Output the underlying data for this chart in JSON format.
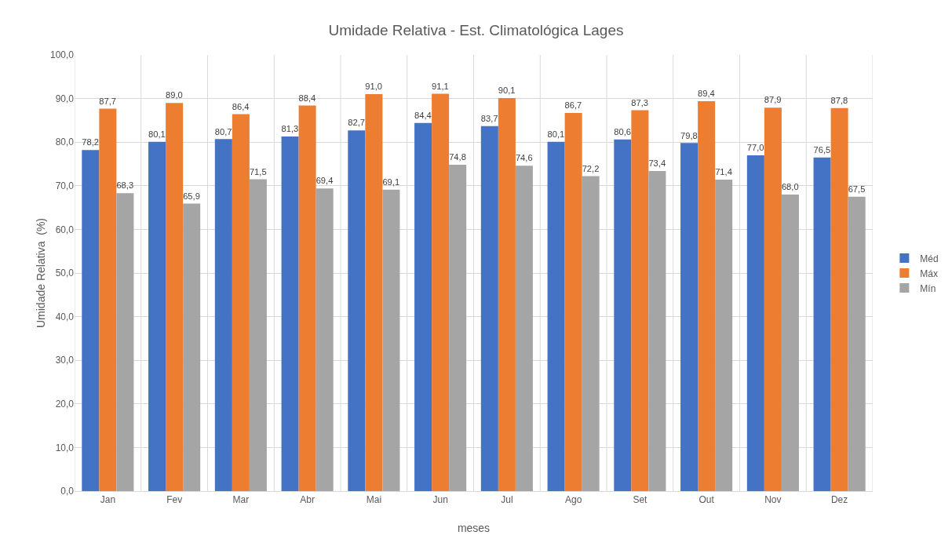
{
  "chart_data": {
    "type": "bar",
    "title": "Umidade Relativa - Est. Climatológica Lages",
    "xlabel": "meses",
    "ylabel": "Umidade Relativa  (%)",
    "categories": [
      "Jan",
      "Fev",
      "Mar",
      "Abr",
      "Mai",
      "Jun",
      "Jul",
      "Ago",
      "Set",
      "Out",
      "Nov",
      "Dez"
    ],
    "series": [
      {
        "name": "Méd",
        "color": "#4472c4",
        "values": [
          78.2,
          80.1,
          80.7,
          81.3,
          82.7,
          84.4,
          83.7,
          80.1,
          80.6,
          79.8,
          77.0,
          76.5
        ],
        "value_labels": [
          "78,2",
          "80,1",
          "80,7",
          "81,3",
          "82,7",
          "84,4",
          "83,7",
          "80,1",
          "80,6",
          "79,8",
          "77,0",
          "76,5"
        ]
      },
      {
        "name": "Máx",
        "color": "#ed7d31",
        "values": [
          87.7,
          89.0,
          86.4,
          88.4,
          91.0,
          91.1,
          90.1,
          86.7,
          87.3,
          89.4,
          87.9,
          87.8
        ],
        "value_labels": [
          "87,7",
          "89,0",
          "86,4",
          "88,4",
          "91,0",
          "91,1",
          "90,1",
          "86,7",
          "87,3",
          "89,4",
          "87,9",
          "87,8"
        ]
      },
      {
        "name": "Mín",
        "color": "#a5a5a5",
        "values": [
          68.3,
          65.9,
          71.5,
          69.4,
          69.1,
          74.8,
          74.6,
          72.2,
          73.4,
          71.4,
          68.0,
          67.5
        ],
        "value_labels": [
          "68,3",
          "65,9",
          "71,5",
          "69,4",
          "69,1",
          "74,8",
          "74,6",
          "72,2",
          "73,4",
          "71,4",
          "68,0",
          "67,5"
        ]
      }
    ],
    "ylim": [
      0,
      100
    ],
    "yticks": [
      {
        "value": 0,
        "label": "0,0"
      },
      {
        "value": 10,
        "label": "10,0"
      },
      {
        "value": 20,
        "label": "20,0"
      },
      {
        "value": 30,
        "label": "30,0"
      },
      {
        "value": 40,
        "label": "40,0"
      },
      {
        "value": 50,
        "label": "50,0"
      },
      {
        "value": 60,
        "label": "60,0"
      },
      {
        "value": 70,
        "label": "70,0"
      },
      {
        "value": 80,
        "label": "80,0"
      },
      {
        "value": 90,
        "label": "90,0"
      },
      {
        "value": 100,
        "label": "100,0"
      }
    ],
    "grid": true,
    "legend": "right"
  }
}
